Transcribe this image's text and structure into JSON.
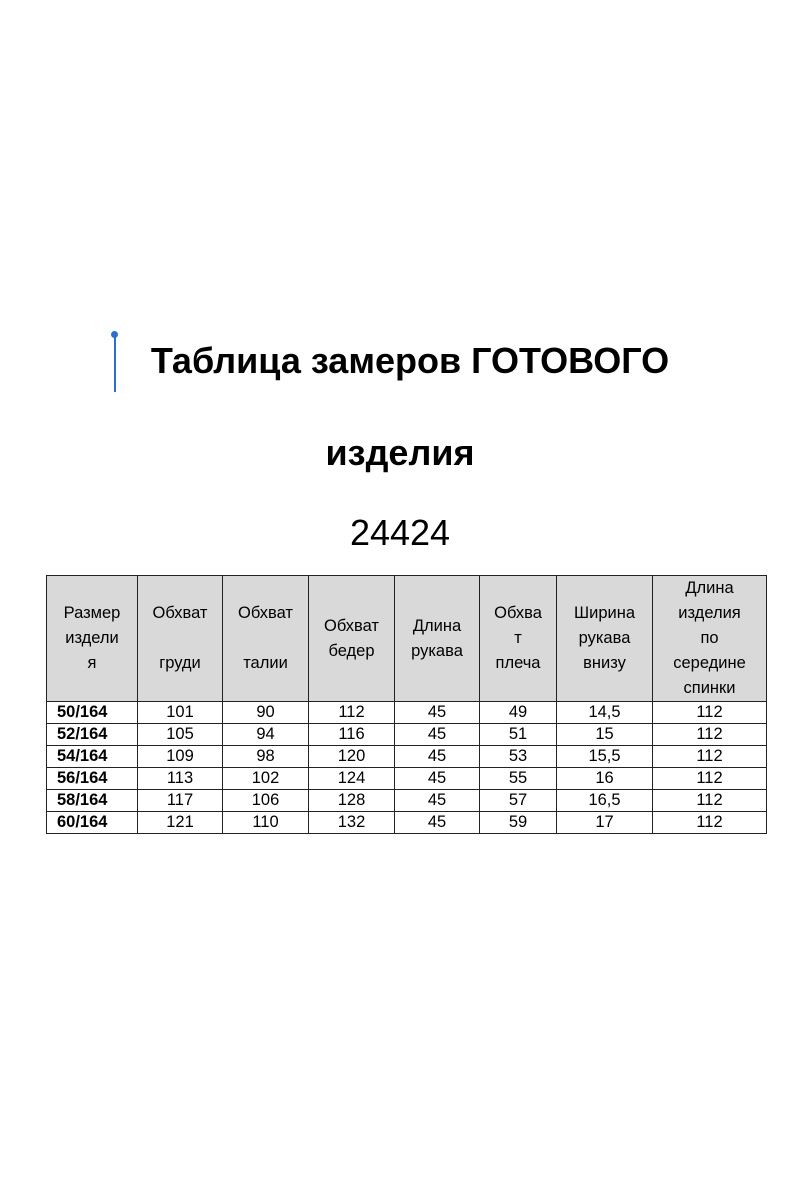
{
  "title_line1": "Таблица замеров ГОТОВОГО",
  "title_line2": "изделия",
  "model_code": "24424",
  "table": {
    "headers": [
      "Размер\nиздели\nя",
      "Обхват\n\nгруди",
      "Обхват\n\nталии",
      "Обхват\nбедер",
      "Длина\nрукава",
      "Обхва\nт\nплеча",
      "Ширина\nрукава\nвнизу",
      "Длина\nизделия\nпо\nсередине\nспинки"
    ],
    "rows": [
      [
        "50/164",
        "101",
        "90",
        "112",
        "45",
        "49",
        "14,5",
        "112"
      ],
      [
        "52/164",
        "105",
        "94",
        "116",
        "45",
        "51",
        "15",
        "112"
      ],
      [
        "54/164",
        "109",
        "98",
        "120",
        "45",
        "53",
        "15,5",
        "112"
      ],
      [
        "56/164",
        "113",
        "102",
        "124",
        "45",
        "55",
        "16",
        "112"
      ],
      [
        "58/164",
        "117",
        "106",
        "128",
        "45",
        "57",
        "16,5",
        "112"
      ],
      [
        "60/164",
        "121",
        "110",
        "132",
        "45",
        "59",
        "17",
        "112"
      ]
    ]
  }
}
